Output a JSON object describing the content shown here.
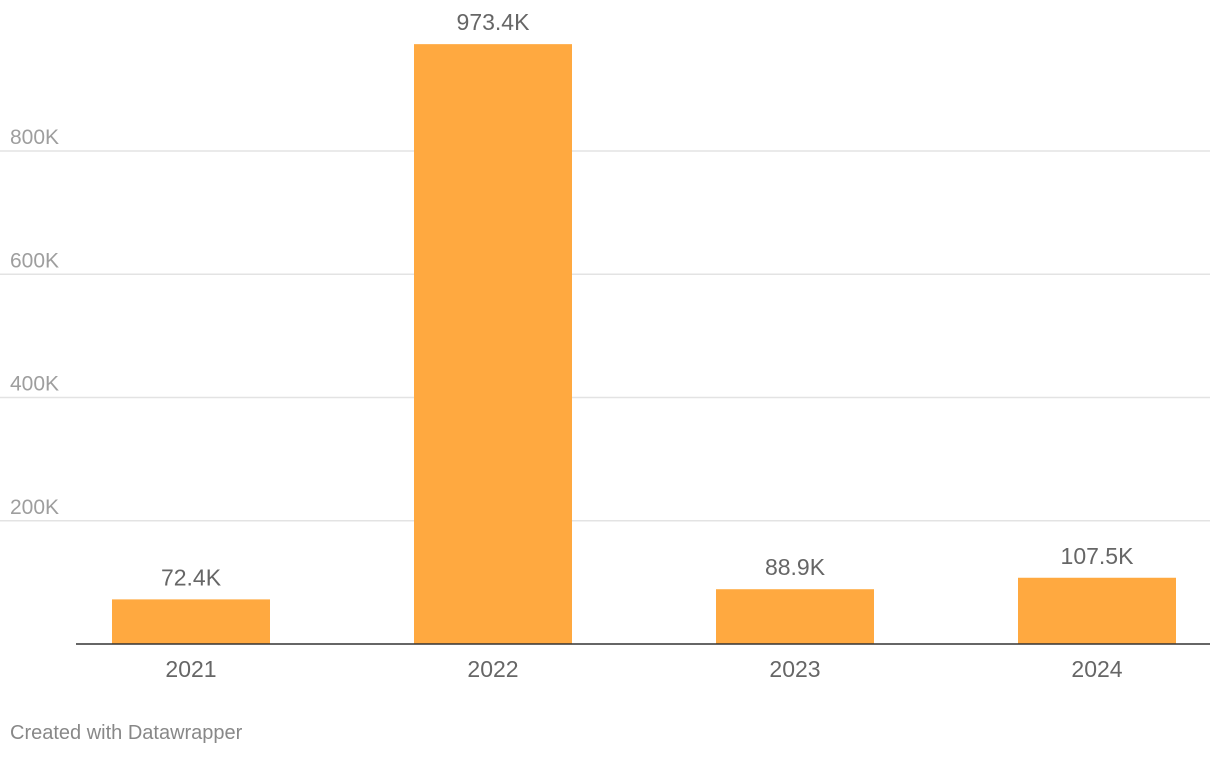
{
  "chart_data": {
    "type": "bar",
    "categories": [
      "2021",
      "2022",
      "2023",
      "2024"
    ],
    "values": [
      72400,
      973400,
      88900,
      107500
    ],
    "value_labels": [
      "72.4K",
      "973.4K",
      "88.9K",
      "107.5K"
    ],
    "title": "",
    "xlabel": "",
    "ylabel": "",
    "ylim": [
      0,
      1000000
    ],
    "yticks": [
      200000,
      400000,
      600000,
      800000
    ],
    "ytick_labels": [
      "200K",
      "400K",
      "600K",
      "800K"
    ],
    "grid": "horizontal",
    "bar_color": "#FFA940"
  },
  "footer": {
    "credit": "Created with Datawrapper"
  }
}
